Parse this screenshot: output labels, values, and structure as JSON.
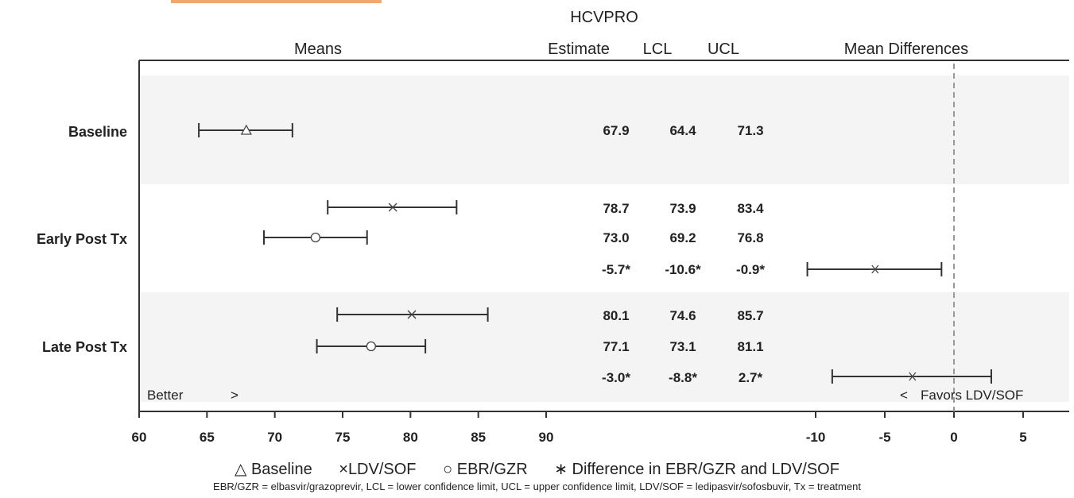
{
  "chart_data": {
    "type": "forest",
    "title": "HCVPRO",
    "column_headers": {
      "means": "Means",
      "estimate": "Estimate",
      "lcl": "LCL",
      "ucl": "UCL",
      "differences": "Mean Differences"
    },
    "rows": [
      {
        "group": "Baseline",
        "series": "Baseline",
        "marker": "triangle",
        "estimate": 67.9,
        "lcl": 64.4,
        "ucl": 71.3,
        "estimate_text": "67.9",
        "lcl_text": "64.4",
        "ucl_text": "71.3",
        "panel": "means"
      },
      {
        "group": "Early Post Tx",
        "series": "LDV/SOF",
        "marker": "x",
        "estimate": 78.7,
        "lcl": 73.9,
        "ucl": 83.4,
        "estimate_text": "78.7",
        "lcl_text": "73.9",
        "ucl_text": "83.4",
        "panel": "means"
      },
      {
        "group": "Early Post Tx",
        "series": "EBR/GZR",
        "marker": "circle",
        "estimate": 73.0,
        "lcl": 69.2,
        "ucl": 76.8,
        "estimate_text": "73.0",
        "lcl_text": "69.2",
        "ucl_text": "76.8",
        "panel": "means"
      },
      {
        "group": "Early Post Tx",
        "series": "Difference in EBR/GZR and LDV/SOF",
        "marker": "star",
        "estimate": -5.7,
        "lcl": -10.6,
        "ucl": -0.9,
        "estimate_text": "-5.7*",
        "lcl_text": "-10.6*",
        "ucl_text": "-0.9*",
        "panel": "differences"
      },
      {
        "group": "Late Post Tx",
        "series": "LDV/SOF",
        "marker": "x",
        "estimate": 80.1,
        "lcl": 74.6,
        "ucl": 85.7,
        "estimate_text": "80.1",
        "lcl_text": "74.6",
        "ucl_text": "85.7",
        "panel": "means"
      },
      {
        "group": "Late Post Tx",
        "series": "EBR/GZR",
        "marker": "circle",
        "estimate": 77.1,
        "lcl": 73.1,
        "ucl": 81.1,
        "estimate_text": "77.1",
        "lcl_text": "73.1",
        "ucl_text": "81.1",
        "panel": "means"
      },
      {
        "group": "Late Post Tx",
        "series": "Difference in EBR/GZR and LDV/SOF",
        "marker": "star",
        "estimate": -3.0,
        "lcl": -8.8,
        "ucl": 2.7,
        "estimate_text": "-3.0*",
        "lcl_text": "-8.8*",
        "ucl_text": "2.7*",
        "panel": "differences"
      }
    ],
    "group_labels": [
      "Baseline",
      "Early Post Tx",
      "Late Post Tx"
    ],
    "means_axis": {
      "ticks": [
        "60",
        "65",
        "70",
        "75",
        "80",
        "85",
        "90"
      ],
      "range": [
        60,
        90
      ]
    },
    "diff_axis": {
      "ticks": [
        "-10",
        "-5",
        "0",
        "5"
      ],
      "range": [
        -10,
        5
      ],
      "reference_line": 0
    },
    "annotations": {
      "better": "Better",
      "better_arrow": ">",
      "favors_arrow": "<",
      "favors": "Favors LDV/SOF"
    },
    "legend": [
      {
        "symbol": "△",
        "label": "Baseline"
      },
      {
        "symbol": "×",
        "label": "LDV/SOF"
      },
      {
        "symbol": "○",
        "label": "EBR/GZR"
      },
      {
        "symbol": "∗",
        "label": "Difference in EBR/GZR and LDV/SOF"
      }
    ],
    "footnote": "EBR/GZR = elbasvir/grazoprevir, LCL = lower confidence limit, UCL = upper confidence limit, LDV/SOF = ledipasvir/sofosbuvir, Tx = treatment",
    "colors": {
      "band": "#f4f4f4",
      "line": "#333333",
      "reference": "#999999",
      "accent": "#f0a870"
    }
  }
}
